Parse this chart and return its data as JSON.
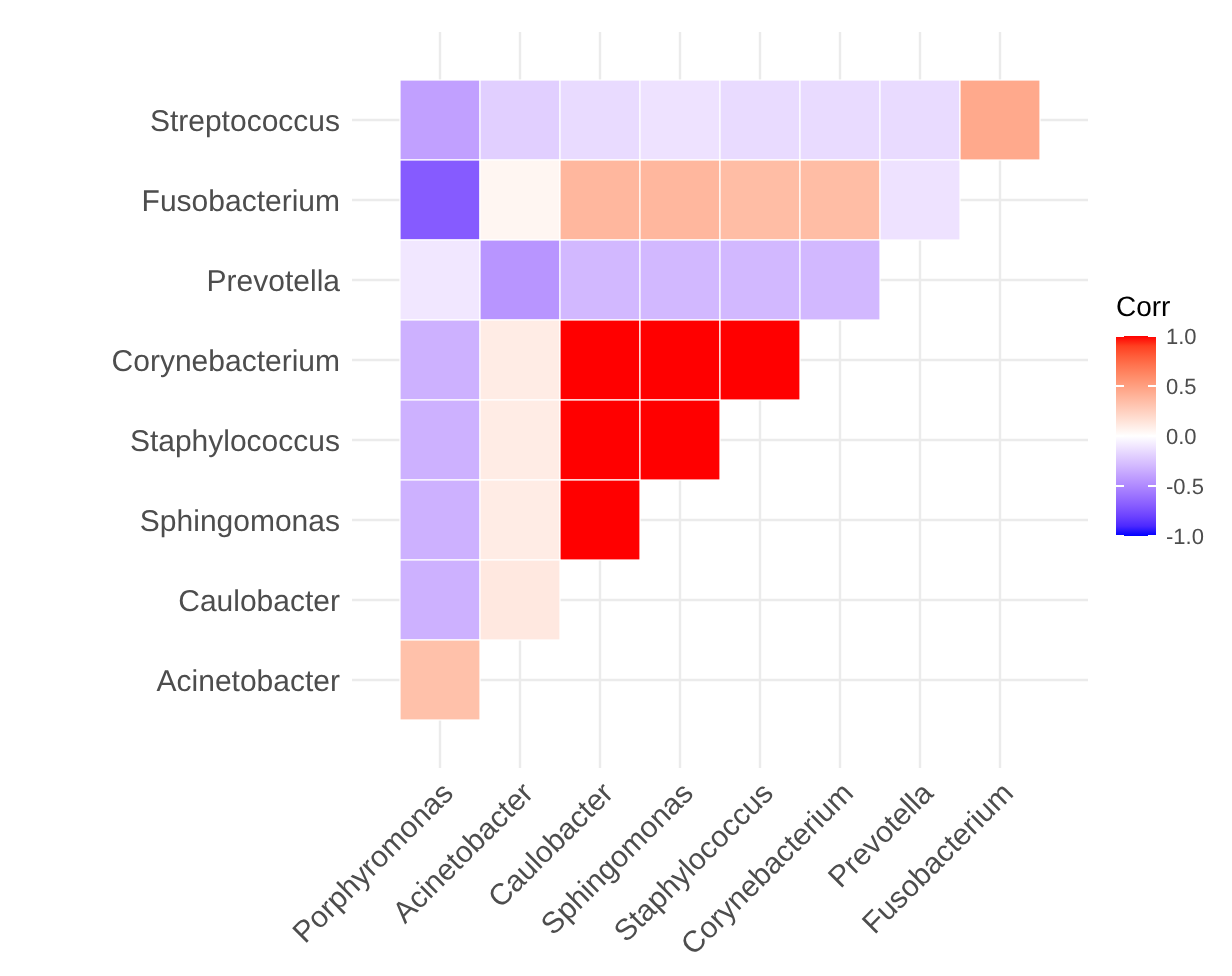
{
  "chart_data": {
    "type": "heatmap",
    "legend_title": "Corr",
    "categories": [
      "Porphyromonas",
      "Acinetobacter",
      "Caulobacter",
      "Sphingomonas",
      "Staphylococcus",
      "Corynebacterium",
      "Prevotella",
      "Fusobacterium"
    ],
    "y_categories": [
      "Streptococcus",
      "Fusobacterium",
      "Prevotella",
      "Corynebacterium",
      "Staphylococcus",
      "Sphingomonas",
      "Caulobacter",
      "Acinetobacter"
    ],
    "cells": [
      [
        -0.4,
        -0.2,
        -0.15,
        -0.12,
        -0.15,
        -0.15,
        -0.15,
        0.45
      ],
      [
        -0.7,
        0.05,
        0.38,
        0.38,
        0.35,
        0.35,
        -0.12,
        null
      ],
      [
        -0.1,
        -0.45,
        -0.3,
        -0.3,
        -0.3,
        -0.3,
        null,
        null
      ],
      [
        -0.33,
        0.1,
        1,
        1,
        1,
        null,
        null,
        null
      ],
      [
        -0.33,
        0.1,
        1,
        1,
        null,
        null,
        null,
        null
      ],
      [
        -0.33,
        0.1,
        1,
        null,
        null,
        null,
        null,
        null
      ],
      [
        -0.33,
        0.12,
        null,
        null,
        null,
        null,
        null,
        null
      ],
      [
        0.33,
        null,
        null,
        null,
        null,
        null,
        null,
        null
      ]
    ],
    "clim": [
      -1,
      1
    ],
    "cticks": [
      {
        "value": 1,
        "label": "1.0"
      },
      {
        "value": 0.5,
        "label": "0.5"
      },
      {
        "value": 0,
        "label": "0.0"
      },
      {
        "value": -0.5,
        "label": "-0.5"
      },
      {
        "value": -1,
        "label": "-1.0"
      }
    ],
    "colors": [
      "#0000ff",
      "#ffffff",
      "#ff0000"
    ],
    "grid": true
  }
}
